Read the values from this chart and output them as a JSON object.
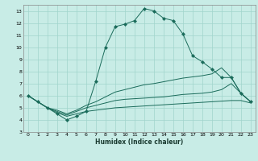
{
  "xlabel": "Humidex (Indice chaleur)",
  "xlim": [
    -0.5,
    23.5
  ],
  "ylim": [
    3,
    13.5
  ],
  "yticks": [
    3,
    4,
    5,
    6,
    7,
    8,
    9,
    10,
    11,
    12,
    13
  ],
  "xticks": [
    0,
    1,
    2,
    3,
    4,
    5,
    6,
    7,
    8,
    9,
    10,
    11,
    12,
    13,
    14,
    15,
    16,
    17,
    18,
    19,
    20,
    21,
    22,
    23
  ],
  "bg_color": "#c8ece6",
  "grid_color": "#a0d4cc",
  "line_color": "#1a6b5a",
  "line_width": 0.7,
  "marker_size": 2.2,
  "main_x": [
    0,
    1,
    2,
    3,
    4,
    5,
    6,
    7,
    8,
    9,
    10,
    11,
    12,
    13,
    14,
    15,
    16,
    17,
    18,
    19,
    20,
    21,
    22,
    23
  ],
  "main_y": [
    6.0,
    5.5,
    5.0,
    4.5,
    4.0,
    4.3,
    4.7,
    7.2,
    10.0,
    11.7,
    11.9,
    12.2,
    13.2,
    13.0,
    12.4,
    12.2,
    11.1,
    9.3,
    8.8,
    8.2,
    7.5,
    7.5,
    6.2,
    5.5
  ],
  "line2_x": [
    0,
    2,
    3,
    4,
    5,
    6,
    7,
    8,
    9,
    10,
    11,
    12,
    13,
    14,
    15,
    16,
    17,
    18,
    19,
    20,
    21,
    22,
    23
  ],
  "line2_y": [
    6.0,
    5.0,
    4.8,
    4.5,
    4.8,
    5.2,
    5.5,
    5.9,
    6.3,
    6.5,
    6.7,
    6.9,
    7.0,
    7.15,
    7.3,
    7.45,
    7.55,
    7.65,
    7.8,
    8.3,
    7.5,
    6.2,
    5.5
  ],
  "line3_x": [
    0,
    2,
    3,
    4,
    5,
    6,
    7,
    8,
    9,
    10,
    11,
    12,
    13,
    14,
    15,
    16,
    17,
    18,
    19,
    20,
    21,
    22,
    23
  ],
  "line3_y": [
    6.0,
    5.0,
    4.7,
    4.4,
    4.7,
    5.0,
    5.2,
    5.4,
    5.6,
    5.7,
    5.75,
    5.8,
    5.85,
    5.9,
    6.0,
    6.1,
    6.15,
    6.2,
    6.3,
    6.5,
    7.0,
    6.2,
    5.5
  ],
  "line4_x": [
    0,
    2,
    3,
    4,
    5,
    6,
    7,
    8,
    9,
    10,
    11,
    12,
    13,
    14,
    15,
    16,
    17,
    18,
    19,
    20,
    21,
    22,
    23
  ],
  "line4_y": [
    6.0,
    5.0,
    4.6,
    4.3,
    4.5,
    4.7,
    4.8,
    4.9,
    5.0,
    5.05,
    5.1,
    5.15,
    5.2,
    5.25,
    5.3,
    5.35,
    5.4,
    5.45,
    5.5,
    5.55,
    5.6,
    5.6,
    5.4
  ]
}
